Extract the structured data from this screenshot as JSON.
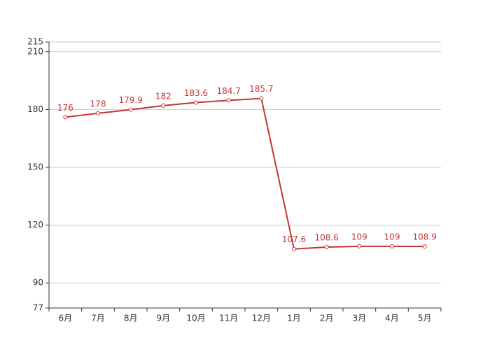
{
  "chart_data": {
    "type": "line",
    "categories": [
      "6月",
      "7月",
      "8月",
      "9月",
      "10月",
      "11月",
      "12月",
      "1月",
      "2月",
      "3月",
      "4月",
      "5月"
    ],
    "values": [
      176,
      178,
      179.9,
      182,
      183.6,
      184.7,
      185.7,
      107.6,
      108.6,
      109,
      109,
      108.9
    ],
    "color": "#c23531",
    "ylim": [
      77,
      215
    ],
    "yticks": [
      77,
      90,
      120,
      150,
      180,
      210,
      215
    ],
    "grid": true
  }
}
